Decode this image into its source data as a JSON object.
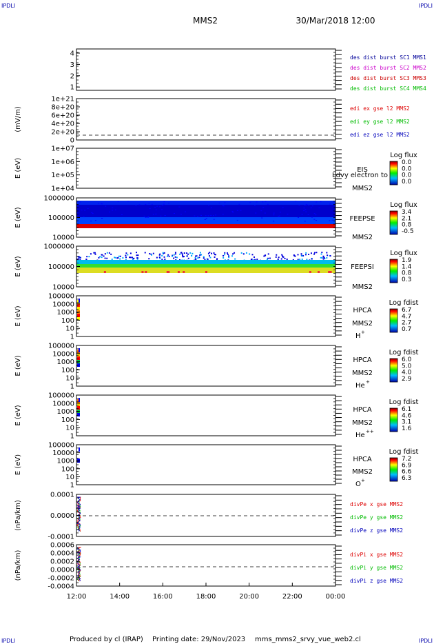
{
  "header": {
    "corner_tl": "IPDLI",
    "corner_tr": "IPDLI",
    "corner_bl": "IPDLI",
    "corner_br": "IPDLI",
    "spacecraft": "MMS2",
    "date": "30/Mar/2018 12:00"
  },
  "footer": {
    "produced_by": "Produced by cl (IRAP)",
    "printing_date": "Printing date: 29/Nov/2023",
    "product": "mms_mms2_srvy_vue_web2.cl"
  },
  "colors": {
    "mms1": "#000099",
    "mms2": "#cc00cc",
    "mms3": "#cc0000",
    "mms4": "#00bb00",
    "x_comp": "#dd0000",
    "y_comp": "#00bb00",
    "z_comp": "#0000bb"
  },
  "chart_data": {
    "type": "heatmap",
    "x_axis": {
      "range": [
        "12:00",
        "00:00"
      ],
      "tick_labels": [
        "12:00",
        "14:00",
        "16:00",
        "18:00",
        "20:00",
        "22:00",
        "00:00"
      ]
    },
    "panels": [
      {
        "id": "des_dist_burst",
        "type": "line",
        "ylabel": "",
        "ytick_labels": [
          "4",
          "3",
          "2",
          "1"
        ],
        "legend": [
          {
            "text": "des dist burst SC1 MMS1",
            "color": "mms1"
          },
          {
            "text": "des dist burst SC2 MMS2",
            "color": "mms2"
          },
          {
            "text": "des dist burst SC3 MMS3",
            "color": "mms3"
          },
          {
            "text": "des dist burst SC4 MMS4",
            "color": "mms4"
          }
        ]
      },
      {
        "id": "edi_e_gse",
        "type": "line",
        "ylabel": "(mV/m)",
        "ytick_labels": [
          "1e+21",
          "8e+20",
          "6e+20",
          "4e+20",
          "2e+20",
          "0"
        ],
        "legend": [
          {
            "text": "edi ex gse l2 MMS2",
            "color": "x_comp"
          },
          {
            "text": "edi ey gse l2 MMS2",
            "color": "y_comp"
          },
          {
            "text": "edi ez gse l2 MMS2",
            "color": "z_comp"
          }
        ]
      },
      {
        "id": "eis",
        "type": "heatmap",
        "ylabel": "E (eV)",
        "ytick_labels": [
          "1e+07",
          "1e+06",
          "1e+05",
          "1e+04"
        ],
        "instrument": "EIS",
        "overlay_text": "Ldvy electron to",
        "spacecraft": "MMS2",
        "species": "",
        "colorbar": {
          "title": "Log flux",
          "values": [
            "0.0",
            "0.0",
            "0.0",
            "0.0"
          ]
        }
      },
      {
        "id": "feepse",
        "type": "heatmap",
        "ylabel": "E (eV)",
        "ytick_labels": [
          "1000000",
          "100000",
          "10000"
        ],
        "instrument": "FEEPSE",
        "spacecraft": "MMS2",
        "species": "",
        "colorbar": {
          "title": "Log flux",
          "values": [
            "3.4",
            "2.1",
            "0.8",
            "-0.5"
          ]
        }
      },
      {
        "id": "feepsi",
        "type": "heatmap",
        "ylabel": "E (eV)",
        "ytick_labels": [
          "1000000",
          "100000",
          "10000"
        ],
        "instrument": "FEEPSI",
        "spacecraft": "MMS2",
        "species": "",
        "colorbar": {
          "title": "Log flux",
          "values": [
            "1.9",
            "1.4",
            "0.8",
            "0.3"
          ]
        }
      },
      {
        "id": "hpca_h",
        "type": "heatmap",
        "ylabel": "E (eV)",
        "ytick_labels": [
          "100000",
          "10000",
          "1000",
          "100",
          "10",
          "1"
        ],
        "instrument": "HPCA",
        "spacecraft": "MMS2",
        "species": "H",
        "species_sup": "+",
        "colorbar": {
          "title": "Log fdist",
          "values": [
            "6.7",
            "4.7",
            "2.7",
            "0.7"
          ]
        }
      },
      {
        "id": "hpca_he1",
        "type": "heatmap",
        "ylabel": "E (eV)",
        "ytick_labels": [
          "100000",
          "10000",
          "1000",
          "100",
          "10",
          "1"
        ],
        "instrument": "HPCA",
        "spacecraft": "MMS2",
        "species": "He",
        "species_sup": "+",
        "colorbar": {
          "title": "Log fdist",
          "values": [
            "6.0",
            "5.0",
            "4.0",
            "2.9"
          ]
        }
      },
      {
        "id": "hpca_he2",
        "type": "heatmap",
        "ylabel": "E (eV)",
        "ytick_labels": [
          "100000",
          "10000",
          "1000",
          "100",
          "10",
          "1"
        ],
        "instrument": "HPCA",
        "spacecraft": "MMS2",
        "species": "He",
        "species_sup": "++",
        "colorbar": {
          "title": "Log fdist",
          "values": [
            "6.1",
            "4.6",
            "3.1",
            "1.6"
          ]
        }
      },
      {
        "id": "hpca_o",
        "type": "heatmap",
        "ylabel": "E (eV)",
        "ytick_labels": [
          "100000",
          "10000",
          "1000",
          "100",
          "10",
          "1"
        ],
        "instrument": "HPCA",
        "spacecraft": "MMS2",
        "species": "O",
        "species_sup": "+",
        "colorbar": {
          "title": "Log fdist",
          "values": [
            "7.2",
            "6.9",
            "6.6",
            "6.3"
          ]
        }
      },
      {
        "id": "divpe",
        "type": "line",
        "ylabel": "(nPa/km)",
        "ytick_labels": [
          "0.0001",
          "0.0000",
          "-0.0001"
        ],
        "legend": [
          {
            "text": "divPe x gse MMS2",
            "color": "x_comp"
          },
          {
            "text": "divPe y gse MMS2",
            "color": "y_comp"
          },
          {
            "text": "divPe z gse MMS2",
            "color": "z_comp"
          }
        ]
      },
      {
        "id": "divpi",
        "type": "line",
        "ylabel": "(nPa/km)",
        "ytick_labels": [
          "0.0006",
          "0.0004",
          "0.0002",
          "0.0000",
          "-0.0002",
          "-0.0004"
        ],
        "legend": [
          {
            "text": "divPi x gse MMS2",
            "color": "x_comp"
          },
          {
            "text": "divPi y gse MMS2",
            "color": "y_comp"
          },
          {
            "text": "divPi z gse MMS2",
            "color": "z_comp"
          }
        ]
      }
    ]
  }
}
